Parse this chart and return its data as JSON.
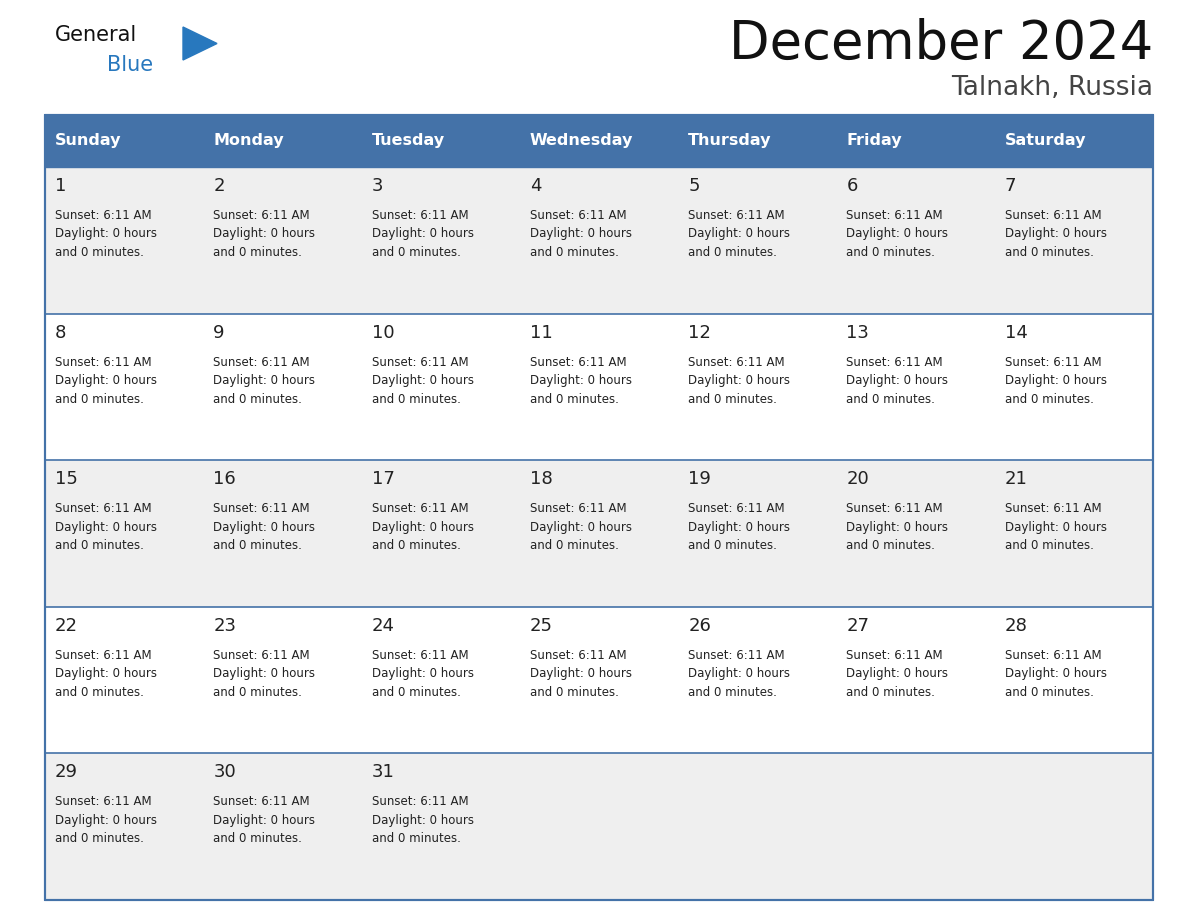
{
  "title": "December 2024",
  "subtitle": "Talnakh, Russia",
  "days_of_week": [
    "Sunday",
    "Monday",
    "Tuesday",
    "Wednesday",
    "Thursday",
    "Friday",
    "Saturday"
  ],
  "header_bg": "#4472a8",
  "header_text_color": "#ffffff",
  "row_bg_odd": "#efefef",
  "row_bg_even": "#ffffff",
  "border_color": "#4472a8",
  "text_color": "#222222",
  "title_color": "#111111",
  "subtitle_color": "#444444",
  "general_black": "#111111",
  "general_blue": "#2878be",
  "calendar": [
    [
      1,
      2,
      3,
      4,
      5,
      6,
      7
    ],
    [
      8,
      9,
      10,
      11,
      12,
      13,
      14
    ],
    [
      15,
      16,
      17,
      18,
      19,
      20,
      21
    ],
    [
      22,
      23,
      24,
      25,
      26,
      27,
      28
    ],
    [
      29,
      30,
      31,
      0,
      0,
      0,
      0
    ]
  ],
  "cell_text": "Sunset: 6:11 AM\nDaylight: 0 hours\nand 0 minutes.",
  "fig_width": 11.88,
  "fig_height": 9.18,
  "num_rows": 5,
  "num_cols": 7
}
